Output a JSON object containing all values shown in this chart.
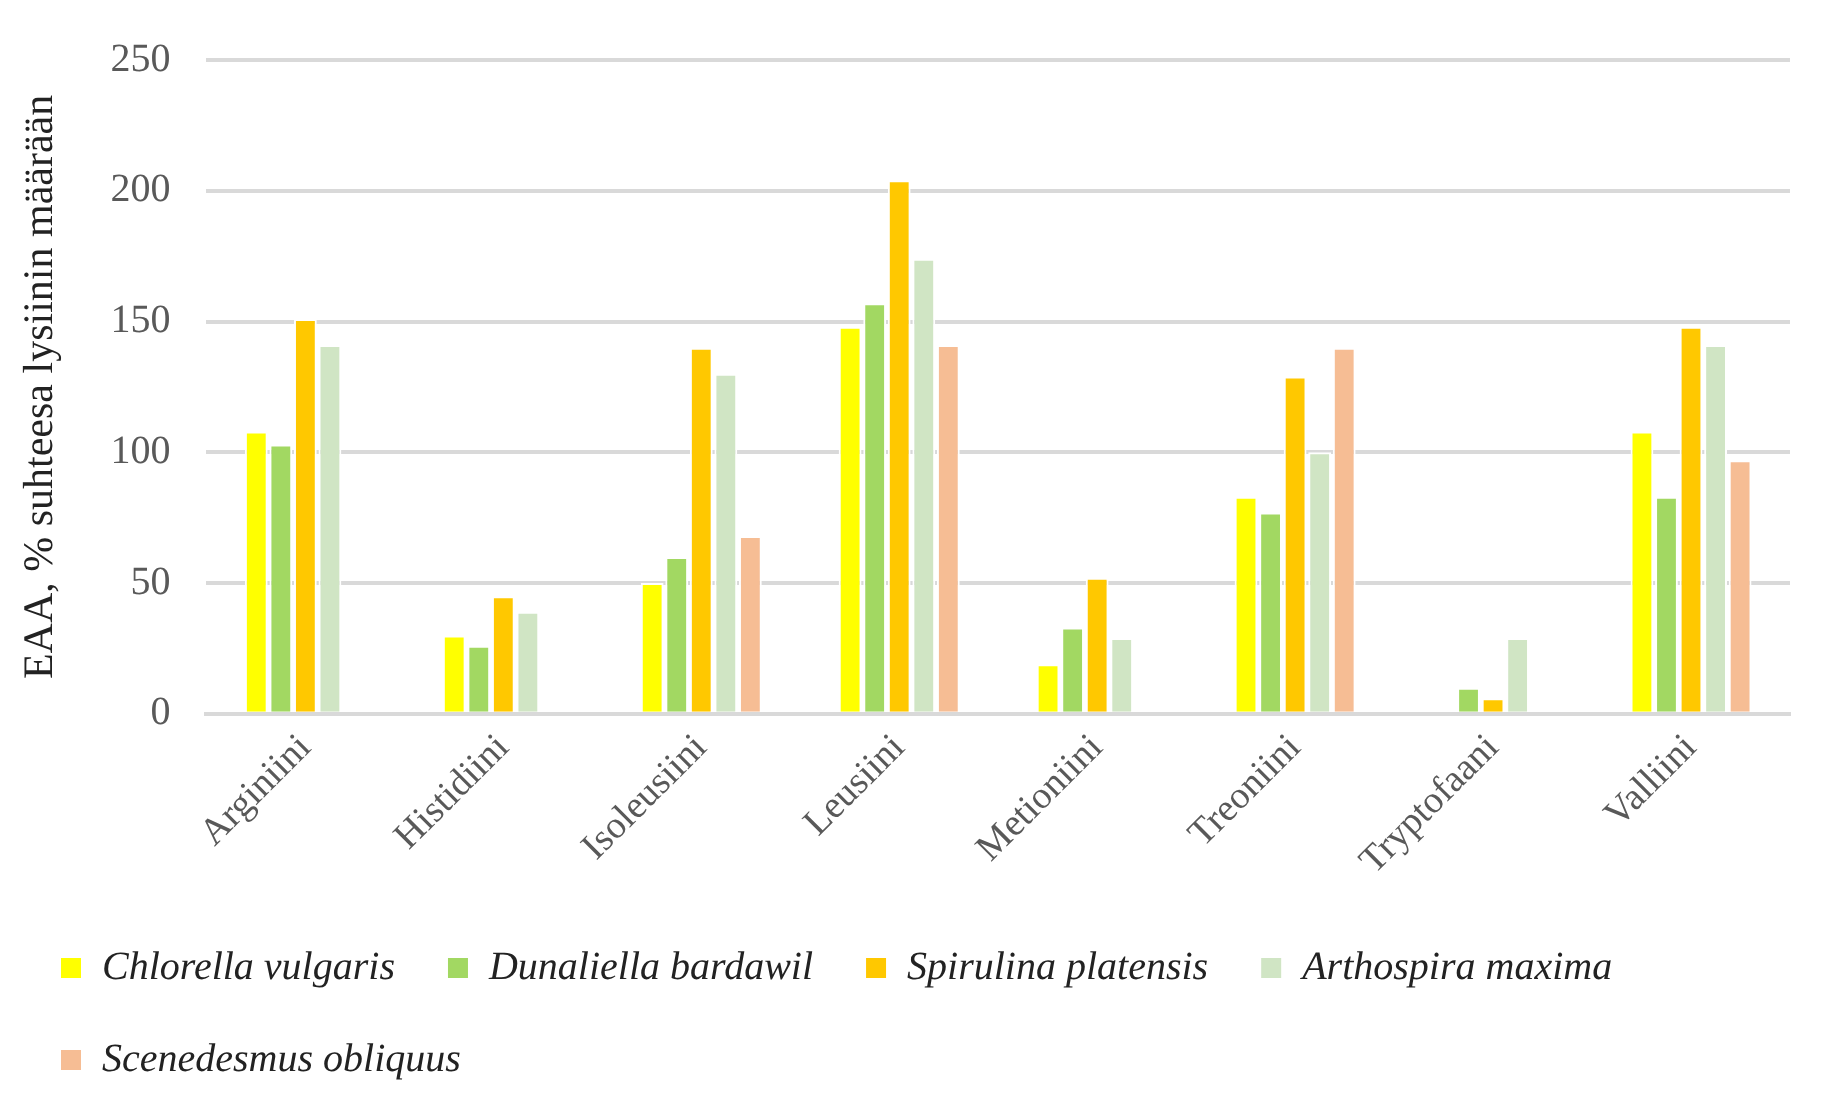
{
  "chart_data": {
    "type": "bar",
    "ylabel": "EAA, % suhteesa lysiinin määrään",
    "categories": [
      "Arginiini",
      "Histidiini",
      "Isoleusiini",
      "Leusiini",
      "Metioniini",
      "Treoniini",
      "Tryptofaani",
      "Valliini"
    ],
    "series": [
      {
        "name": "Chlorella vulgaris",
        "color": "#ffff00",
        "values": [
          108,
          30,
          50,
          148,
          19,
          83,
          null,
          108
        ]
      },
      {
        "name": "Dunaliella bardawil",
        "color": "#a2d862",
        "values": [
          103,
          26,
          60,
          157,
          33,
          77,
          10,
          83
        ]
      },
      {
        "name": "Spirulina platensis",
        "color": "#ffc800",
        "values": [
          151,
          45,
          140,
          204,
          52,
          129,
          6,
          148
        ]
      },
      {
        "name": "Arthospira maxima",
        "color": "#d0e5c4",
        "values": [
          141,
          39,
          130,
          174,
          29,
          100,
          29,
          141
        ]
      },
      {
        "name": "Scenedesmus obliquus",
        "color": "#f6bd94",
        "values": [
          null,
          null,
          68,
          141,
          null,
          140,
          null,
          97
        ]
      }
    ],
    "ylim": [
      0,
      250
    ],
    "yticks": [
      0,
      50,
      100,
      150,
      200,
      250
    ],
    "grid": "y",
    "legend": "bottom"
  }
}
